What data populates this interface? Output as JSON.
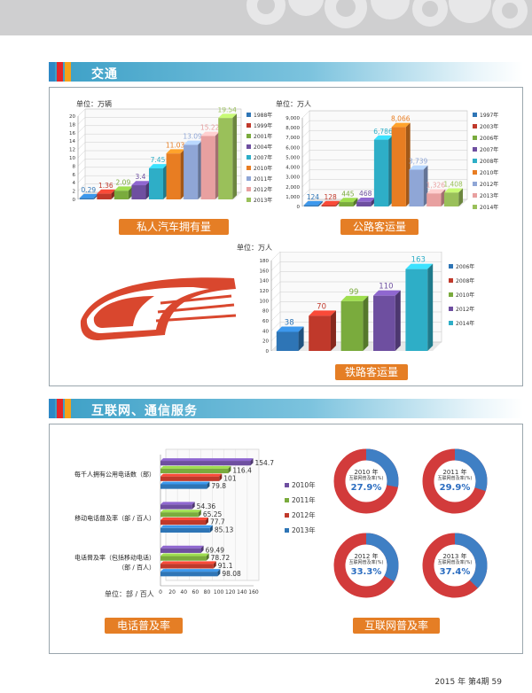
{
  "page": {
    "footer": "2015 年 第4期   59"
  },
  "sections": {
    "traffic": "交通",
    "internet": "互联网、通信服务"
  },
  "colors": {
    "stripes": [
      "#2d88c6",
      "#e6262a",
      "#f6a21a"
    ],
    "tag": "#e57e25"
  },
  "car_chart": {
    "unit": "单位：万辆",
    "tag": "私人汽车拥有量",
    "chart_data": {
      "type": "bar",
      "title": "私人汽车拥有量",
      "unit_label": "单位：万辆",
      "categories": [
        "1988年",
        "1999年",
        "2001年",
        "2004年",
        "2007年",
        "2010年",
        "2011年",
        "2012年",
        "2013年"
      ],
      "values": [
        0.29,
        1.36,
        2.09,
        3.4,
        7.45,
        11.03,
        13.09,
        15.22,
        19.54
      ],
      "value_labels": [
        "0.29",
        "1.36",
        "2.09",
        "3.4",
        "7.45",
        "11.03",
        "13.09",
        "15.22",
        "19.54"
      ],
      "colors": [
        "#2e75b6",
        "#c0392b",
        "#7aab3d",
        "#6e4fa0",
        "#2eaec7",
        "#e87d22",
        "#8fa6d6",
        "#e8a0a0",
        "#9ac05a"
      ],
      "ylim": [
        0,
        20
      ],
      "yticks": [
        0,
        2,
        4,
        6,
        8,
        10,
        12,
        14,
        16,
        18,
        20
      ],
      "legend": "right"
    }
  },
  "road_chart": {
    "unit": "单位：万人",
    "tag": "公路客运量",
    "chart_data": {
      "type": "bar",
      "title": "公路客运量",
      "unit_label": "单位：万人",
      "categories": [
        "1997年",
        "2003年",
        "2006年",
        "2007年",
        "2008年",
        "2010年",
        "2012年",
        "2013年",
        "2014年"
      ],
      "values": [
        124,
        128,
        445,
        468,
        6786,
        8066,
        3739,
        1326,
        1408
      ],
      "value_labels": [
        "124",
        "128",
        "445",
        "468",
        "6,786",
        "8,066",
        "3,739",
        "1,326",
        "1,408"
      ],
      "colors": [
        "#2e75b6",
        "#c0392b",
        "#7aab3d",
        "#6e4fa0",
        "#2eaec7",
        "#e87d22",
        "#8fa6d6",
        "#e8a0a0",
        "#9ac05a"
      ],
      "ylim": [
        0,
        9000
      ],
      "yticks": [
        0,
        1000,
        2000,
        3000,
        4000,
        5000,
        6000,
        7000,
        8000,
        9000
      ],
      "ytick_labels": [
        "0",
        "1,000",
        "2,000",
        "3,000",
        "4,000",
        "5,000",
        "6,000",
        "7,000",
        "8,000",
        "9,000"
      ],
      "legend": "right"
    }
  },
  "rail_chart": {
    "unit": "单位：万人",
    "tag": "铁路客运量",
    "chart_data": {
      "type": "bar",
      "title": "铁路客运量",
      "unit_label": "单位：万人",
      "categories": [
        "2006年",
        "2008年",
        "2010年",
        "2012年",
        "2014年"
      ],
      "values": [
        38,
        70,
        99,
        110,
        163
      ],
      "value_labels": [
        "38",
        "70",
        "99",
        "110",
        "163"
      ],
      "colors": [
        "#2e75b6",
        "#c0392b",
        "#7aab3d",
        "#6e4fa0",
        "#2eaec7"
      ],
      "ylim": [
        0,
        180
      ],
      "yticks": [
        0,
        20,
        40,
        60,
        80,
        100,
        120,
        140,
        160,
        180
      ],
      "legend": "right"
    }
  },
  "phone_chart": {
    "unit": "单位：部 / 百人",
    "tag": "电话普及率",
    "chart_data": {
      "type": "bar",
      "orientation": "horizontal",
      "title": "电话普及率",
      "unit_label": "单位：部 / 百人",
      "categories": [
        "每千人拥有公用电话数（部）",
        "移动电话普及率（部 / 百人）",
        "电话普及率（包括移动电话）（部 / 百人）"
      ],
      "category_lines": [
        [
          "每千人拥有公用电话数（部）"
        ],
        [
          "移动电话普及率（部 / 百人）"
        ],
        [
          "电话普及率（包括移动电话）",
          "（部 / 百人）"
        ]
      ],
      "series": [
        {
          "name": "2010年",
          "color": "#6e4fa0",
          "values": [
            154.7,
            54.36,
            69.49
          ],
          "labels": [
            "154.7",
            "54.36",
            "69.49"
          ]
        },
        {
          "name": "2011年",
          "color": "#7aab3d",
          "values": [
            116.4,
            65.25,
            78.72
          ],
          "labels": [
            "116.4",
            "65.25",
            "78.72"
          ]
        },
        {
          "name": "2012年",
          "color": "#c0392b",
          "values": [
            101,
            77.7,
            91.1
          ],
          "labels": [
            "101",
            "77.7",
            "91.1"
          ]
        },
        {
          "name": "2013年",
          "color": "#2e75b6",
          "values": [
            79.8,
            85.13,
            98.08
          ],
          "labels": [
            "79.8",
            "85.13",
            "98.08"
          ]
        }
      ],
      "xlim": [
        0,
        160
      ],
      "xticks": [
        0,
        20,
        40,
        60,
        80,
        100,
        120,
        140,
        160
      ],
      "legend": "right"
    }
  },
  "internet_chart": {
    "tag": "互联网普及率",
    "chart_data": {
      "type": "pie",
      "variant": "donut",
      "title": "互联网普及率",
      "caption": "互联网普及率(%)",
      "items": [
        {
          "year": "2010 年",
          "value": 27.9,
          "label": "27.9%"
        },
        {
          "year": "2011 年",
          "value": 29.9,
          "label": "29.9%"
        },
        {
          "year": "2012 年",
          "value": 33.3,
          "label": "33.3%"
        },
        {
          "year": "2013 年",
          "value": 37.4,
          "label": "37.4%"
        }
      ],
      "colors": {
        "share": "#3f7fc4",
        "rest": "#d23b3b"
      }
    }
  }
}
